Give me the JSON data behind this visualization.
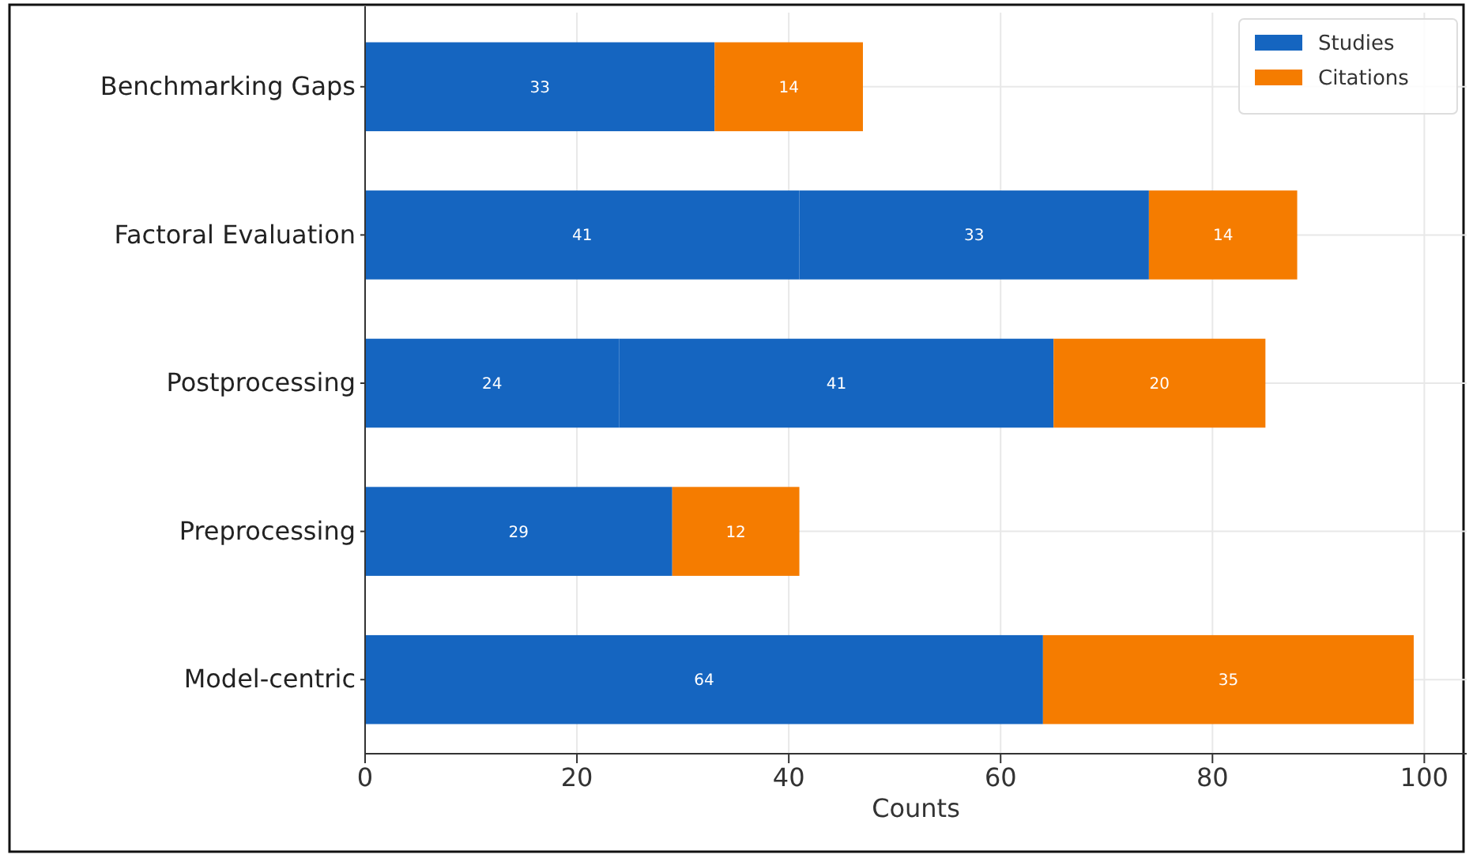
{
  "chart_data": {
    "type": "bar",
    "orientation": "horizontal",
    "stacked": true,
    "xlabel": "Counts",
    "categories": [
      "Benchmarking Gaps",
      "Factoral Evaluation",
      "Postprocessing",
      "Preprocessing",
      "Model-centric"
    ],
    "series": [
      {
        "name": "Studies",
        "color": "#1565c0",
        "values": [
          33,
          41,
          24,
          29,
          64
        ]
      },
      {
        "color": "#1565c0",
        "values": [
          null,
          33,
          41,
          null,
          null
        ]
      },
      {
        "name": "Citations",
        "color": "#f57c00",
        "values": [
          14,
          14,
          20,
          12,
          35
        ]
      }
    ],
    "xlim": [
      0,
      104
    ],
    "xticks": [
      0,
      20,
      40,
      60,
      80,
      100
    ],
    "grid": true,
    "legend": "top right",
    "data_labels": true
  }
}
